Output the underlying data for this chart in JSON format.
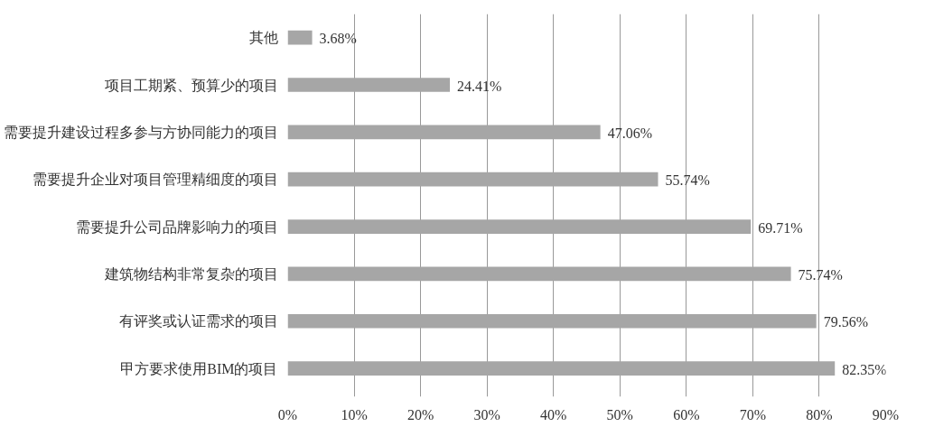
{
  "chart_data": {
    "type": "bar",
    "orientation": "horizontal",
    "categories": [
      "其他",
      "项目工期紧、预算少的项目",
      "需要提升建设过程多参与方协同能力的项目",
      "需要提升企业对项目管理精细度的项目",
      "需要提升公司品牌影响力的项目",
      "建筑物结构非常复杂的项目",
      "有评奖或认证需求的项目",
      "甲方要求使用BIM的项目"
    ],
    "values": [
      3.68,
      24.41,
      47.06,
      55.74,
      69.71,
      75.74,
      79.56,
      82.35
    ],
    "value_labels": [
      "3.68%",
      "24.41%",
      "47.06%",
      "55.74%",
      "69.71%",
      "75.74%",
      "79.56%",
      "82.35%"
    ],
    "color": "#a6a6a6",
    "xlim": [
      0,
      90
    ],
    "xticks": [
      {
        "value": 0,
        "label": "0%"
      },
      {
        "value": 10,
        "label": "10%"
      },
      {
        "value": 20,
        "label": "20%"
      },
      {
        "value": 30,
        "label": "30%"
      },
      {
        "value": 40,
        "label": "40%"
      },
      {
        "value": 50,
        "label": "50%"
      },
      {
        "value": 60,
        "label": "60%"
      },
      {
        "value": 70,
        "label": "70%"
      },
      {
        "value": 80,
        "label": "80%"
      },
      {
        "value": 90,
        "label": "90%"
      }
    ],
    "grid": "x"
  }
}
